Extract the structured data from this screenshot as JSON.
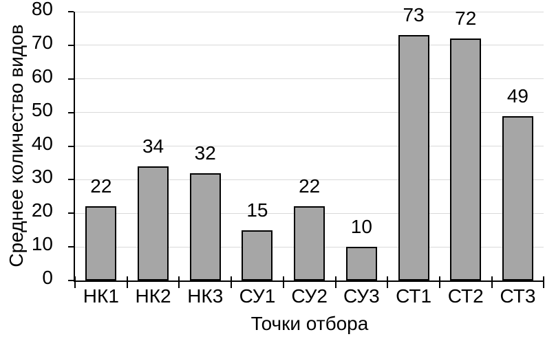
{
  "chart_data": {
    "type": "bar",
    "categories": [
      "НК1",
      "НК2",
      "НК3",
      "СУ1",
      "СУ2",
      "СУ3",
      "СТ1",
      "СТ2",
      "СТ3"
    ],
    "values": [
      22,
      34,
      32,
      15,
      22,
      10,
      73,
      72,
      49
    ],
    "title": "",
    "xlabel": "Точки отбора",
    "ylabel": "Среднее количество видов",
    "ylim": [
      0,
      80
    ],
    "ytick_step": 10,
    "yticks": [
      0,
      10,
      20,
      30,
      40,
      50,
      60,
      70,
      80
    ],
    "grid": true,
    "legend": false,
    "data_labels": true,
    "bar_fill": "#a6a6a6",
    "bar_border": "#000000",
    "gridline_color": "#d9d9d9",
    "axis_color": "#000000",
    "text_color": "#000000"
  }
}
